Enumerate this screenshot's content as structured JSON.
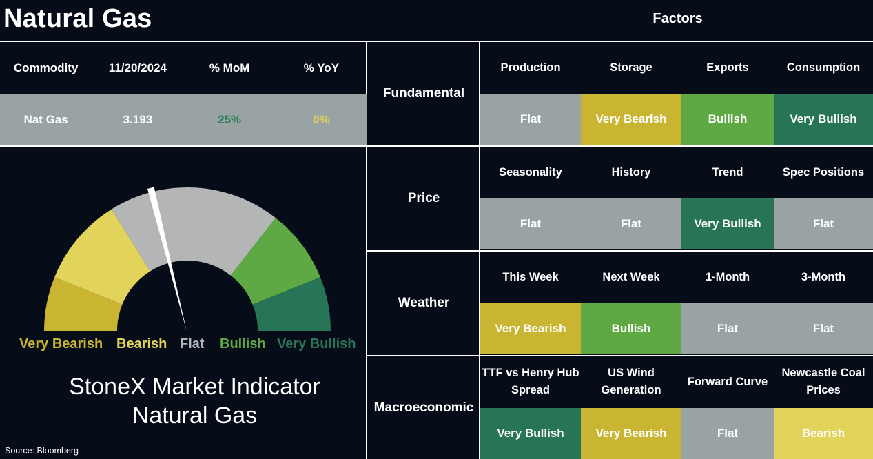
{
  "title": "Natural Gas",
  "factors_title": "Factors",
  "commodity_table": {
    "headers": [
      "Commodity",
      "11/20/2024",
      "% MoM",
      "% YoY"
    ],
    "row": {
      "commodity": "Nat Gas",
      "price": "3.193",
      "mom": "25%",
      "yoy": "0%"
    },
    "colors": {
      "mom": "#2e7d5b",
      "yoy": "#e0d35a"
    }
  },
  "status_colors": {
    "Very Bearish": "#c9b531",
    "Bearish": "#e2d35b",
    "Flat": "#9aa3a3",
    "Bullish": "#5ea943",
    "Very Bullish": "#287456"
  },
  "categories": [
    {
      "name": "Fundamental",
      "factors": [
        "Production",
        "Storage",
        "Exports",
        "Consumption"
      ],
      "values": [
        "Flat",
        "Very Bearish",
        "Bullish",
        "Very Bullish"
      ]
    },
    {
      "name": "Price",
      "factors": [
        "Seasonality",
        "History",
        "Trend",
        "Spec Positions"
      ],
      "values": [
        "Flat",
        "Flat",
        "Very Bullish",
        "Flat"
      ]
    },
    {
      "name": "Weather",
      "factors": [
        "This Week",
        "Next Week",
        "1-Month",
        "3-Month"
      ],
      "values": [
        "Very Bearish",
        "Bullish",
        "Flat",
        "Flat"
      ]
    },
    {
      "name": "Macroeconomic",
      "factors": [
        "TTF vs Henry Hub Spread",
        "US Wind Generation",
        "Forward Curve",
        "Newcastle Coal Prices"
      ],
      "values": [
        "Very Bullish",
        "Very Bearish",
        "Flat",
        "Bearish"
      ]
    }
  ],
  "gauge": {
    "labels": [
      "Very Bearish",
      "Bearish",
      "Flat",
      "Bullish",
      "Very Bullish"
    ],
    "label_colors": [
      "#c9b531",
      "#e2d35b",
      "#b0b5b5",
      "#5ea943",
      "#287456"
    ],
    "reading": "Flat",
    "needle_position": 0.42
  },
  "indicator_title": [
    "StoneX Market Indicator",
    "Natural Gas"
  ],
  "source": "Source: Bloomberg"
}
